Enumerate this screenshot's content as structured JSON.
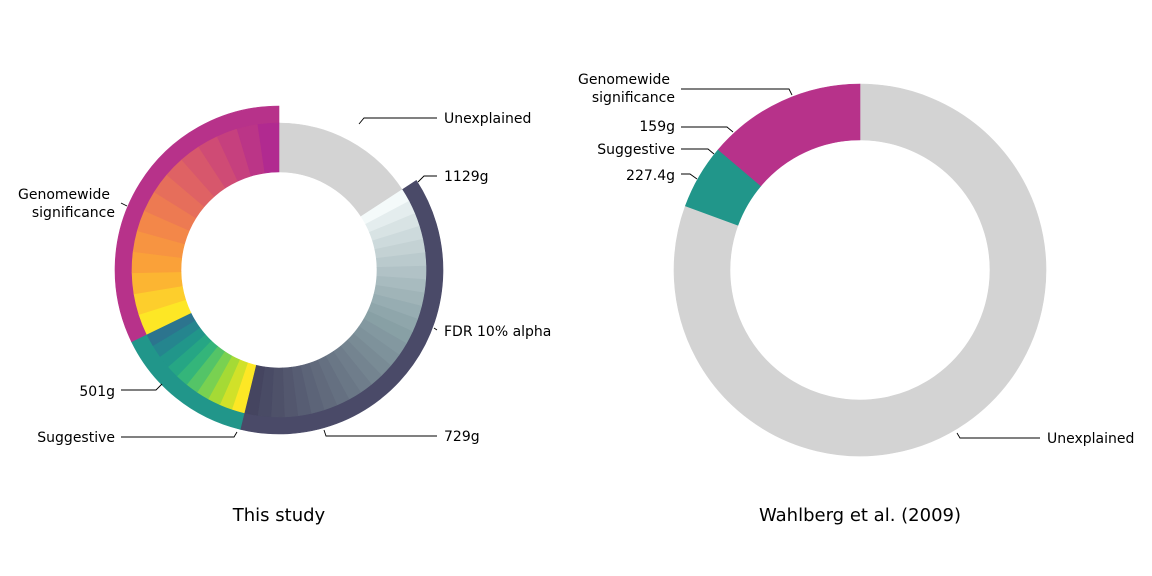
{
  "chart_data": [
    {
      "type": "pie",
      "title": "This study",
      "outer_ring": [
        {
          "label": "Unexplained",
          "value": 0.158,
          "color": "#d3d3d3"
        },
        {
          "label": "FDR 10% alpha",
          "value": 0.38,
          "color": "#4a4a68"
        },
        {
          "label": "Suggestive",
          "value": 0.14,
          "color": "#21968a"
        },
        {
          "label": "Genomewide significance",
          "value": 0.322,
          "color": "#b7328a"
        }
      ],
      "inner_ring": {
        "Unexplained": {
          "color": "#d3d3d3"
        },
        "FDR 10% alpha": {
          "count": 26,
          "colors": [
            "#f4fafa",
            "#454560"
          ]
        },
        "Suggestive": {
          "count": 10,
          "palette": "viridis"
        },
        "Genomewide significance": {
          "count": 14,
          "palette": "plasma"
        }
      },
      "annotations": [
        "Unexplained",
        "1129g",
        "FDR 10% alpha",
        "729g",
        "Suggestive",
        "501g",
        "Genomewide significance"
      ]
    },
    {
      "type": "pie",
      "title": "Wahlberg et al. (2009)",
      "slices": [
        {
          "label": "Unexplained",
          "value": 0.806,
          "color": "#d3d3d3"
        },
        {
          "label": "Suggestive",
          "value": 0.056,
          "color": "#21968a"
        },
        {
          "label": "Genomewide significance",
          "value": 0.138,
          "color": "#b7328a"
        }
      ],
      "annotations": [
        "Genomewide significance",
        "159g",
        "Suggestive",
        "227.4g",
        "Unexplained"
      ]
    }
  ],
  "left_chart": {
    "title": "This study",
    "labels": {
      "unexplained": "Unexplained",
      "g1129": "1129g",
      "fdr": "FDR 10% alpha",
      "g729": "729g",
      "suggestive": "Suggestive",
      "g501": "501g",
      "genomewide_line1": "Genomewide",
      "genomewide_line2": "significance"
    }
  },
  "right_chart": {
    "title": "Wahlberg et al. (2009)",
    "labels": {
      "genomewide_line1": "Genomewide",
      "genomewide_line2": "significance",
      "g159": "159g",
      "suggestive": "Suggestive",
      "g227": "227.4g",
      "unexplained": "Unexplained"
    }
  }
}
